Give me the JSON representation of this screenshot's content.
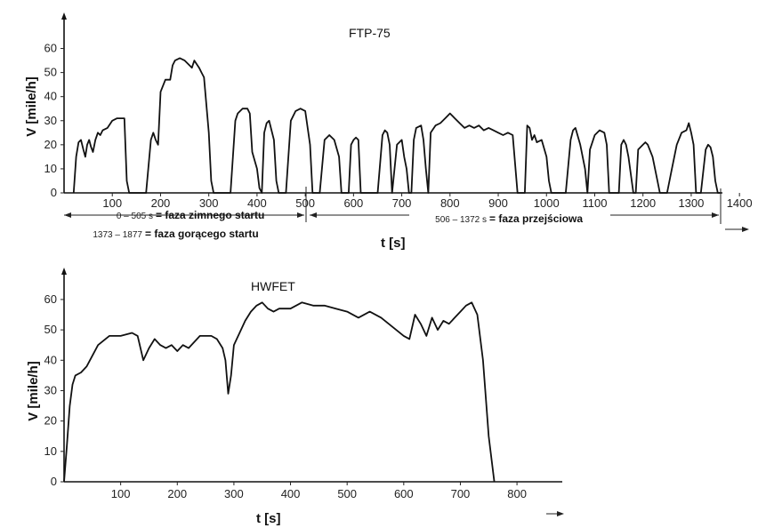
{
  "chart_data": [
    {
      "type": "line",
      "title": "FTP-75",
      "xlabel": "t [s]",
      "ylabel": "V [mile/h]",
      "x_ticks": [
        100,
        200,
        300,
        400,
        500,
        600,
        700,
        800,
        900,
        1000,
        1100,
        1200,
        1300,
        1400
      ],
      "y_ticks": [
        0,
        10,
        20,
        30,
        40,
        50,
        60
      ],
      "xlim": [
        0,
        1420
      ],
      "ylim": [
        0,
        65
      ],
      "grid": false,
      "annotations": {
        "cold_phase": {
          "range": "0 – 505 s",
          "label": "= faza zimnego startu"
        },
        "hot_phase": {
          "range": "1373 – 1877",
          "label": "= faza gorącego startu"
        },
        "transient_phase": {
          "range": "506 – 1372 s",
          "label": "= faza przejściowa"
        }
      },
      "series": [
        {
          "x": [
            20,
            25,
            30,
            35,
            40,
            44,
            48,
            52,
            56,
            60,
            65,
            70,
            75,
            80,
            90,
            100,
            110,
            120,
            125,
            130,
            135,
            140,
            145,
            150,
            160,
            170,
            180,
            185,
            190,
            195,
            200,
            210,
            220,
            225,
            230,
            240,
            250,
            260,
            265,
            270,
            280,
            285,
            290,
            300,
            305,
            310,
            315,
            320,
            330,
            340,
            345,
            350,
            355,
            360,
            370,
            380,
            385,
            390,
            400,
            405,
            410,
            415,
            420,
            425,
            430,
            435,
            440,
            445,
            450,
            460,
            470,
            480,
            490,
            500,
            510,
            515,
            520,
            525,
            530,
            540,
            550,
            560,
            570,
            575,
            580,
            585,
            590,
            595,
            600,
            605,
            610,
            615,
            630,
            640,
            650,
            660,
            665,
            670,
            675,
            680,
            690,
            700,
            705,
            710,
            715,
            720,
            725,
            730,
            740,
            745,
            750,
            755,
            760,
            770,
            780,
            790,
            800,
            810,
            820,
            830,
            840,
            850,
            860,
            870,
            880,
            890,
            900,
            910,
            920,
            930,
            940,
            945,
            950,
            955,
            960,
            965,
            970,
            975,
            980,
            990,
            1000,
            1005,
            1010,
            1015,
            1020,
            1040,
            1050,
            1055,
            1060,
            1070,
            1080,
            1085,
            1090,
            1100,
            1110,
            1120,
            1125,
            1130,
            1140,
            1150,
            1155,
            1160,
            1165,
            1170,
            1180,
            1185,
            1190,
            1200,
            1205,
            1210,
            1220,
            1230,
            1235,
            1240,
            1250,
            1255,
            1260,
            1270,
            1280,
            1290,
            1295,
            1300,
            1305,
            1310,
            1320,
            1330,
            1335,
            1340,
            1345,
            1350,
            1355,
            1360
          ],
          "y": [
            0,
            15,
            21,
            22,
            18,
            15,
            20,
            22,
            19,
            17,
            22,
            25,
            24,
            26,
            27,
            30,
            31,
            31,
            31,
            5,
            0,
            0,
            0,
            0,
            0,
            0,
            22,
            25,
            22,
            20,
            42,
            47,
            47,
            53,
            55,
            56,
            55,
            53,
            52,
            55,
            52,
            50,
            48,
            25,
            5,
            0,
            0,
            0,
            0,
            0,
            0,
            15,
            30,
            33,
            35,
            35,
            33,
            17,
            10,
            2,
            0,
            25,
            29,
            30,
            26,
            22,
            5,
            0,
            0,
            0,
            30,
            34,
            35,
            34,
            20,
            0,
            0,
            0,
            0,
            22,
            24,
            22,
            15,
            0,
            0,
            0,
            0,
            20,
            22,
            23,
            22,
            0,
            0,
            0,
            0,
            24,
            26,
            25,
            20,
            0,
            20,
            22,
            15,
            10,
            0,
            0,
            22,
            27,
            28,
            22,
            10,
            0,
            25,
            28,
            29,
            31,
            33,
            31,
            29,
            27,
            28,
            27,
            28,
            26,
            27,
            26,
            25,
            24,
            25,
            24,
            0,
            0,
            0,
            0,
            28,
            27,
            22,
            24,
            21,
            22,
            15,
            5,
            0,
            0,
            0,
            0,
            22,
            26,
            27,
            20,
            10,
            0,
            18,
            24,
            26,
            25,
            20,
            0,
            0,
            0,
            20,
            22,
            20,
            15,
            0,
            0,
            18,
            20,
            21,
            20,
            15,
            5,
            0,
            0,
            0,
            5,
            10,
            20,
            25,
            26,
            29,
            25,
            20,
            0,
            0,
            18,
            20,
            19,
            15,
            5,
            0,
            0
          ]
        }
      ]
    },
    {
      "type": "line",
      "title": "HWFET",
      "xlabel": "t [s]",
      "ylabel": "V [mile/h]",
      "x_ticks": [
        100,
        200,
        300,
        400,
        500,
        600,
        700,
        800
      ],
      "y_ticks": [
        0,
        10,
        20,
        30,
        40,
        50,
        60
      ],
      "xlim": [
        0,
        880
      ],
      "ylim": [
        0,
        67
      ],
      "grid": false,
      "series": [
        {
          "x": [
            0,
            5,
            10,
            15,
            20,
            30,
            40,
            60,
            80,
            100,
            120,
            130,
            140,
            150,
            160,
            170,
            180,
            190,
            200,
            210,
            220,
            240,
            260,
            270,
            280,
            285,
            290,
            295,
            300,
            310,
            320,
            330,
            340,
            350,
            360,
            370,
            380,
            400,
            420,
            440,
            460,
            480,
            500,
            520,
            540,
            560,
            580,
            600,
            610,
            620,
            630,
            640,
            650,
            660,
            670,
            680,
            690,
            700,
            710,
            720,
            730,
            740,
            750,
            760
          ],
          "y": [
            0,
            12,
            25,
            32,
            35,
            36,
            38,
            45,
            48,
            48,
            49,
            48,
            40,
            44,
            47,
            45,
            44,
            45,
            43,
            45,
            44,
            48,
            48,
            47,
            44,
            40,
            29,
            35,
            45,
            49,
            53,
            56,
            58,
            59,
            57,
            56,
            57,
            57,
            59,
            58,
            58,
            57,
            56,
            54,
            56,
            54,
            51,
            48,
            47,
            55,
            52,
            48,
            54,
            50,
            53,
            52,
            54,
            56,
            58,
            59,
            55,
            40,
            15,
            0
          ]
        }
      ]
    }
  ]
}
